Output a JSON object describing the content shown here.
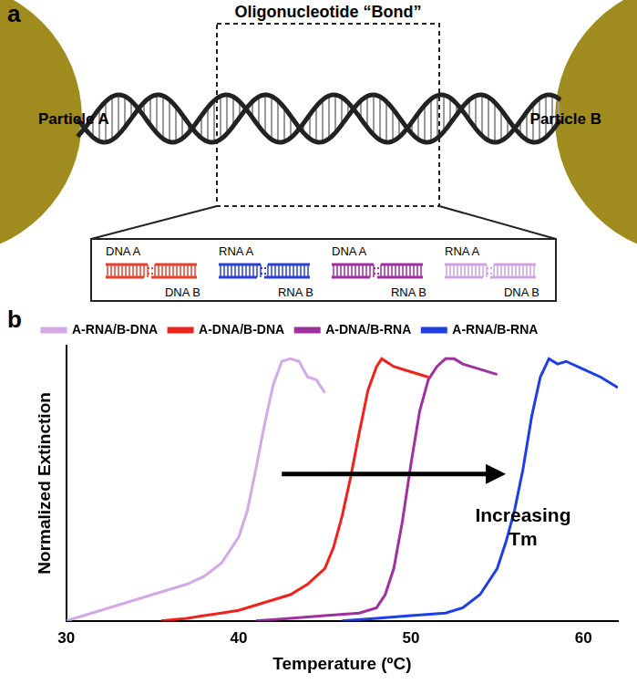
{
  "panel_a": {
    "label": "a",
    "bond_label": "Oligonucleotide “Bond”",
    "particles": [
      "Particle A",
      "Particle B"
    ],
    "duplexes": [
      {
        "top": "DNA A",
        "bottom": "DNA B",
        "color": "#e8402f"
      },
      {
        "top": "RNA A",
        "bottom": "RNA B",
        "color": "#2b3fd6"
      },
      {
        "top": "DNA A",
        "bottom": "RNA B",
        "color": "#9e2f9e"
      },
      {
        "top": "RNA A",
        "bottom": "DNA B",
        "color": "#cfa6e0"
      }
    ]
  },
  "chart_data": {
    "panel_label": "b",
    "type": "line",
    "x_label": "Temperature (ºC)",
    "y_label": "Normalized Extinction",
    "xlim": [
      30,
      62
    ],
    "xticks": [
      30,
      40,
      50,
      60
    ],
    "ylim": [
      0,
      1.05
    ],
    "yticks": [],
    "tick_labels": "x",
    "grid": false,
    "legend": "upper left",
    "annotation": {
      "text": [
        "Increasing",
        "Tm"
      ],
      "x": 56.5,
      "y": 0.4,
      "arrow": {
        "x": [
          42.5,
          55.5
        ],
        "y": 0.56
      }
    },
    "series": [
      {
        "name": "A-RNA/B-DNA",
        "color": "#d4a9e6",
        "x": [
          30,
          31,
          32,
          33,
          34,
          35,
          36,
          37,
          38,
          39,
          40,
          40.5,
          41,
          41.5,
          42,
          42.5,
          43,
          43.5,
          44,
          44.5,
          45
        ],
        "values": [
          0.0,
          0.02,
          0.04,
          0.06,
          0.08,
          0.1,
          0.12,
          0.14,
          0.17,
          0.22,
          0.32,
          0.42,
          0.58,
          0.75,
          0.9,
          0.99,
          1.0,
          0.99,
          0.93,
          0.92,
          0.87
        ]
      },
      {
        "name": "A-DNA/B-DNA",
        "color": "#f0231c",
        "x": [
          35.5,
          37,
          38,
          39,
          40,
          41,
          42,
          43,
          44,
          45,
          45.5,
          46,
          46.5,
          47,
          47.5,
          48,
          48.3,
          49,
          50,
          51
        ],
        "values": [
          0.0,
          0.01,
          0.02,
          0.03,
          0.04,
          0.06,
          0.08,
          0.1,
          0.14,
          0.2,
          0.28,
          0.4,
          0.55,
          0.72,
          0.88,
          0.97,
          1.0,
          0.97,
          0.95,
          0.93
        ]
      },
      {
        "name": "A-DNA/B-RNA",
        "color": "#a0309e",
        "x": [
          41,
          43,
          45,
          47,
          48,
          48.5,
          49,
          49.5,
          50,
          50.5,
          51,
          51.5,
          52,
          52.5,
          53,
          54,
          55
        ],
        "values": [
          0.0,
          0.01,
          0.02,
          0.03,
          0.05,
          0.1,
          0.2,
          0.38,
          0.6,
          0.8,
          0.92,
          0.97,
          1.0,
          1.0,
          0.98,
          0.96,
          0.94
        ]
      },
      {
        "name": "A-RNA/B-RNA",
        "color": "#1f3fe6",
        "x": [
          46,
          48,
          50,
          52,
          53,
          54,
          55,
          55.5,
          56,
          56.5,
          57,
          57.5,
          58,
          58.5,
          59,
          60,
          61,
          62
        ],
        "values": [
          0.0,
          0.01,
          0.02,
          0.03,
          0.05,
          0.1,
          0.2,
          0.3,
          0.42,
          0.58,
          0.78,
          0.93,
          1.0,
          0.98,
          0.99,
          0.96,
          0.93,
          0.89
        ]
      }
    ]
  }
}
